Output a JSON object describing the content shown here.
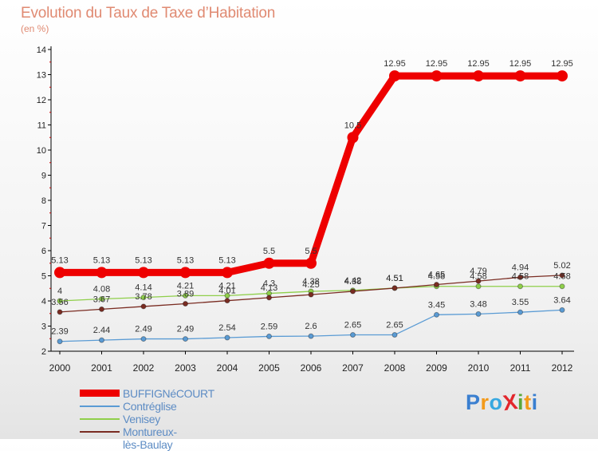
{
  "chart_data": {
    "type": "line",
    "title": "Evolution du Taux de Taxe d’Habitation",
    "subtitle": "(en %)",
    "x": [
      "2000",
      "2001",
      "2002",
      "2003",
      "2004",
      "2005",
      "2006",
      "2007",
      "2008",
      "2009",
      "2010",
      "2011",
      "2012"
    ],
    "ylim": [
      2,
      14
    ],
    "yticks": [
      2,
      3,
      4,
      5,
      6,
      7,
      8,
      9,
      10,
      11,
      12,
      13,
      14
    ],
    "grid": false,
    "legend_position": "bottom-left",
    "series": [
      {
        "name": "BUFFIGNéCOURT",
        "color": "#ee0000",
        "values": [
          5.13,
          5.13,
          5.13,
          5.13,
          5.13,
          5.5,
          5.5,
          10.5,
          12.95,
          12.95,
          12.95,
          12.95,
          12.95
        ],
        "labels": [
          "5.13",
          "5.13",
          "5.13",
          "5.13",
          "5.13",
          "5.5",
          "5.5",
          "10.5",
          "12.95",
          "12.95",
          "12.95",
          "12.95",
          "12.95"
        ]
      },
      {
        "name": "Contréglise",
        "color": "#5a9bd4",
        "values": [
          2.39,
          2.44,
          2.49,
          2.49,
          2.54,
          2.59,
          2.6,
          2.65,
          2.65,
          3.45,
          3.48,
          3.55,
          3.64
        ],
        "labels": [
          "2.39",
          "2.44",
          "2.49",
          "2.49",
          "2.54",
          "2.59",
          "2.6",
          "2.65",
          "2.65",
          "3.45",
          "3.48",
          "3.55",
          "3.64"
        ]
      },
      {
        "name": "Venisey",
        "color": "#8fcf4a",
        "values": [
          4,
          4.08,
          4.14,
          4.21,
          4.21,
          4.3,
          4.38,
          4.42,
          4.51,
          4.58,
          4.58,
          4.58,
          4.58
        ],
        "labels": [
          "4",
          "4.08",
          "4.14",
          "4.21",
          "4.21",
          "4.3",
          "4.38",
          "4.42",
          "4.51",
          "4.58",
          "4.58",
          "4.58",
          "4.58"
        ]
      },
      {
        "name": "Montureux-lès-Baulay",
        "color": "#7a2c22",
        "values": [
          3.56,
          3.67,
          3.78,
          3.89,
          4.01,
          4.13,
          4.25,
          4.38,
          4.51,
          4.65,
          4.79,
          4.94,
          5.02
        ],
        "labels": [
          "3.56",
          "3.67",
          "3.78",
          "3.89",
          "4.01",
          "4.13",
          "4.25",
          "4.38",
          "4.51",
          "4.65",
          "4.79",
          "4.94",
          "5.02"
        ]
      }
    ]
  },
  "logo": {
    "text": "ProXiti",
    "colors": [
      "#3a7fd0",
      "#f39a1a",
      "#37a8e0",
      "#e2262c",
      "#5aa83c",
      "#f39a1a",
      "#3a7fd0"
    ]
  }
}
